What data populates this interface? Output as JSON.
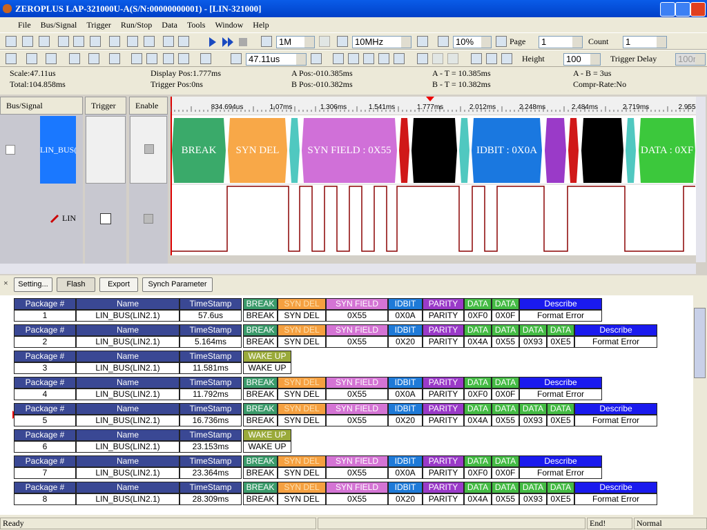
{
  "title_bar": {
    "title": "ZEROPLUS LAP-321000U-A(S/N:00000000001) - [LIN-321000]"
  },
  "menu": [
    "File",
    "Bus/Signal",
    "Trigger",
    "Run/Stop",
    "Data",
    "Tools",
    "Window",
    "Help"
  ],
  "toolbar": {
    "memory": "1M",
    "frequency": "10MHz",
    "ratio": "10%",
    "page_label": "Page",
    "page": "1",
    "count_label": "Count",
    "count": "1",
    "scale": "47.11us",
    "height_label": "Height",
    "height": "100",
    "trigger_delay_label": "Trigger Delay",
    "trigger_delay": "100n"
  },
  "info": {
    "scale": "Scale:47.11us",
    "total": "Total:104.858ms",
    "display_pos": "Display Pos:1.777ms",
    "trigger_pos": "Trigger Pos:0ns",
    "a_pos": "A Pos:-010.385ms",
    "b_pos": "B Pos:-010.382ms",
    "a_t": "A - T = 10.385ms",
    "b_t": "B - T = 10.382ms",
    "a_b": "A - B = 3us",
    "compr": "Compr-Rate:No"
  },
  "signal_panel": {
    "headers": [
      "Bus/Signal",
      "Trigger",
      "Enable"
    ],
    "bus": "LIN_BUS(L",
    "signal": "LIN"
  },
  "ruler": [
    "834.694us",
    "1.07ms",
    "1.306ms",
    "1.541ms",
    "1.777ms",
    "2.012ms",
    "2.248ms",
    "2.484ms",
    "2.719ms",
    "2.955"
  ],
  "bus_segments": [
    "BREAK",
    "SYN DEL",
    "SYN FIELD : 0X55",
    "IDBIT : 0X0A",
    "DATA : 0XF"
  ],
  "buttons": [
    "Setting...",
    "Flash",
    "Export",
    "Synch Parameter"
  ],
  "packets": [
    {
      "headers": [
        "Package #",
        "Name",
        "TimeStamp",
        "BREAK",
        "SYN DEL",
        "SYN FIELD",
        "IDBIT",
        "PARITY",
        "DATA",
        "DATA",
        "Describe"
      ],
      "values": [
        "1",
        "LIN_BUS(LIN2.1)",
        "57.6us",
        "BREAK",
        "SYN DEL",
        "0X55",
        "0X0A",
        "PARITY",
        "0XF0",
        "0X0F",
        "Format Error"
      ],
      "colors": [
        "#3a4894",
        "#3a4894",
        "#3a4894",
        "#3a9a6a",
        "#f5a040",
        "#d474d4",
        "#1e7ad8",
        "#9a3ac8",
        "#44bb44",
        "#44bb44",
        "#1a1aee"
      ]
    },
    {
      "headers": [
        "Package #",
        "Name",
        "TimeStamp",
        "BREAK",
        "SYN DEL",
        "SYN FIELD",
        "IDBIT",
        "PARITY",
        "DATA",
        "DATA",
        "DATA",
        "DATA",
        "Describe"
      ],
      "values": [
        "2",
        "LIN_BUS(LIN2.1)",
        "5.164ms",
        "BREAK",
        "SYN DEL",
        "0X55",
        "0X20",
        "PARITY",
        "0X4A",
        "0X55",
        "0X93",
        "0XE5",
        "Format Error"
      ],
      "colors": [
        "#3a4894",
        "#3a4894",
        "#3a4894",
        "#3a9a6a",
        "#f5a040",
        "#d474d4",
        "#1e7ad8",
        "#9a3ac8",
        "#44bb44",
        "#44bb44",
        "#44bb44",
        "#44bb44",
        "#1a1aee"
      ]
    },
    {
      "headers": [
        "Package #",
        "Name",
        "TimeStamp",
        "WAKE UP"
      ],
      "values": [
        "3",
        "LIN_BUS(LIN2.1)",
        "11.581ms",
        "WAKE UP"
      ],
      "colors": [
        "#3a4894",
        "#3a4894",
        "#3a4894",
        "#9aaa3a"
      ]
    },
    {
      "headers": [
        "Package #",
        "Name",
        "TimeStamp",
        "BREAK",
        "SYN DEL",
        "SYN FIELD",
        "IDBIT",
        "PARITY",
        "DATA",
        "DATA",
        "Describe"
      ],
      "values": [
        "4",
        "LIN_BUS(LIN2.1)",
        "11.792ms",
        "BREAK",
        "SYN DEL",
        "0X55",
        "0X0A",
        "PARITY",
        "0XF0",
        "0X0F",
        "Format Error"
      ],
      "colors": [
        "#3a4894",
        "#3a4894",
        "#3a4894",
        "#3a9a6a",
        "#f5a040",
        "#d474d4",
        "#1e7ad8",
        "#9a3ac8",
        "#44bb44",
        "#44bb44",
        "#1a1aee"
      ]
    },
    {
      "headers": [
        "Package #",
        "Name",
        "TimeStamp",
        "BREAK",
        "SYN DEL",
        "SYN FIELD",
        "IDBIT",
        "PARITY",
        "DATA",
        "DATA",
        "DATA",
        "DATA",
        "Describe"
      ],
      "values": [
        "5",
        "LIN_BUS(LIN2.1)",
        "16.736ms",
        "BREAK",
        "SYN DEL",
        "0X55",
        "0X20",
        "PARITY",
        "0X4A",
        "0X55",
        "0X93",
        "0XE5",
        "Format Error"
      ],
      "colors": [
        "#3a4894",
        "#3a4894",
        "#3a4894",
        "#3a9a6a",
        "#f5a040",
        "#d474d4",
        "#1e7ad8",
        "#9a3ac8",
        "#44bb44",
        "#44bb44",
        "#44bb44",
        "#44bb44",
        "#1a1aee"
      ]
    },
    {
      "headers": [
        "Package #",
        "Name",
        "TimeStamp",
        "WAKE UP"
      ],
      "values": [
        "6",
        "LIN_BUS(LIN2.1)",
        "23.153ms",
        "WAKE UP"
      ],
      "colors": [
        "#3a4894",
        "#3a4894",
        "#3a4894",
        "#9aaa3a"
      ]
    },
    {
      "headers": [
        "Package #",
        "Name",
        "TimeStamp",
        "BREAK",
        "SYN DEL",
        "SYN FIELD",
        "IDBIT",
        "PARITY",
        "DATA",
        "DATA",
        "Describe"
      ],
      "values": [
        "7",
        "LIN_BUS(LIN2.1)",
        "23.364ms",
        "BREAK",
        "SYN DEL",
        "0X55",
        "0X0A",
        "PARITY",
        "0XF0",
        "0X0F",
        "Format Error"
      ],
      "colors": [
        "#3a4894",
        "#3a4894",
        "#3a4894",
        "#3a9a6a",
        "#f5a040",
        "#d474d4",
        "#1e7ad8",
        "#9a3ac8",
        "#44bb44",
        "#44bb44",
        "#1a1aee"
      ]
    },
    {
      "headers": [
        "Package #",
        "Name",
        "TimeStamp",
        "BREAK",
        "SYN DEL",
        "SYN FIELD",
        "IDBIT",
        "PARITY",
        "DATA",
        "DATA",
        "DATA",
        "DATA",
        "Describe"
      ],
      "values": [
        "8",
        "LIN_BUS(LIN2.1)",
        "28.309ms",
        "BREAK",
        "SYN DEL",
        "0X55",
        "0X20",
        "PARITY",
        "0X4A",
        "0X55",
        "0X93",
        "0XE5",
        "Format Error"
      ],
      "colors": [
        "#3a4894",
        "#3a4894",
        "#3a4894",
        "#3a9a6a",
        "#f5a040",
        "#d474d4",
        "#1e7ad8",
        "#9a3ac8",
        "#44bb44",
        "#44bb44",
        "#44bb44",
        "#44bb44",
        "#1a1aee"
      ]
    }
  ],
  "status_bar": {
    "state": "Ready",
    "end": "End!",
    "mode": "Normal"
  }
}
